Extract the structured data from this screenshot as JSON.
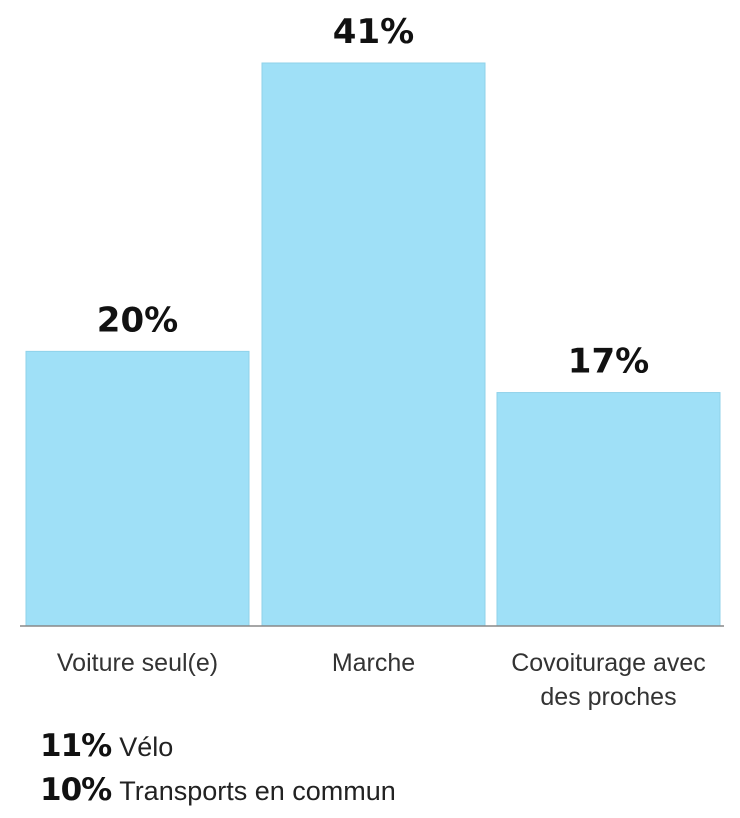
{
  "chart_data": {
    "type": "bar",
    "categories": [
      [
        "Voiture seul(e)"
      ],
      [
        "Marche"
      ],
      [
        "Covoiturage avec",
        "des proches"
      ]
    ],
    "values": [
      20,
      41,
      17
    ],
    "value_labels": [
      "20%",
      "41%",
      "17%"
    ],
    "ylim": [
      0,
      41
    ],
    "grid": false,
    "title": "",
    "xlabel": "",
    "ylabel": "",
    "colors": {
      "bar": "#9fe0f7",
      "bar_edge": "#8fd2ea",
      "baseline": "#888888"
    }
  },
  "extras": [
    {
      "pct": "11%",
      "label": "Vélo"
    },
    {
      "pct": "10%",
      "label": "Transports en commun"
    }
  ]
}
